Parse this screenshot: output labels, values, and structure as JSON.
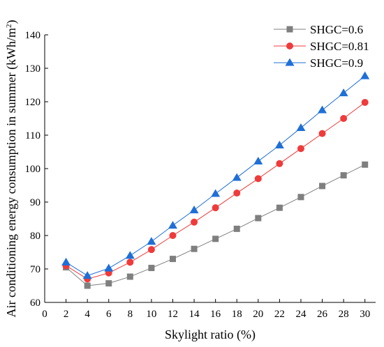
{
  "chart_data": {
    "type": "line",
    "title": "",
    "xlabel": "Skylight ratio (%)",
    "ylabel": "Air conditioning energy consumption in summer (kWh/m²)",
    "ylabel_main": "Air conditioning energy consumption in summer (kWh/m",
    "ylabel_sup": "2",
    "ylabel_close": ")",
    "x": [
      2,
      4,
      6,
      8,
      10,
      12,
      14,
      16,
      18,
      20,
      22,
      24,
      26,
      28,
      30
    ],
    "xlim": [
      0,
      31
    ],
    "ylim": [
      60,
      140
    ],
    "xticks": [
      0,
      2,
      4,
      6,
      8,
      10,
      12,
      14,
      16,
      18,
      20,
      22,
      24,
      26,
      28,
      30
    ],
    "yticks": [
      60,
      70,
      80,
      90,
      100,
      110,
      120,
      130,
      140
    ],
    "grid": false,
    "legend_position": "top-right",
    "series": [
      {
        "name": "SHGC=0.6",
        "color": "#7f7f7f",
        "marker": "square",
        "values": [
          70.5,
          65.0,
          65.7,
          67.7,
          70.3,
          73.0,
          76.0,
          79.0,
          82.0,
          85.2,
          88.3,
          91.5,
          94.8,
          98.0,
          101.2
        ]
      },
      {
        "name": "SHGC=0.81",
        "color": "#ef3b3b",
        "marker": "circle",
        "values": [
          71.0,
          67.0,
          68.8,
          72.0,
          75.8,
          80.0,
          84.0,
          88.3,
          92.7,
          97.0,
          101.5,
          106.0,
          110.5,
          115.0,
          119.8
        ]
      },
      {
        "name": "SHGC=0.9",
        "color": "#1f6fd6",
        "marker": "triangle",
        "values": [
          72.0,
          68.0,
          70.2,
          74.0,
          78.2,
          83.0,
          87.6,
          92.5,
          97.3,
          102.2,
          107.0,
          112.2,
          117.5,
          122.6,
          127.7
        ]
      }
    ]
  }
}
